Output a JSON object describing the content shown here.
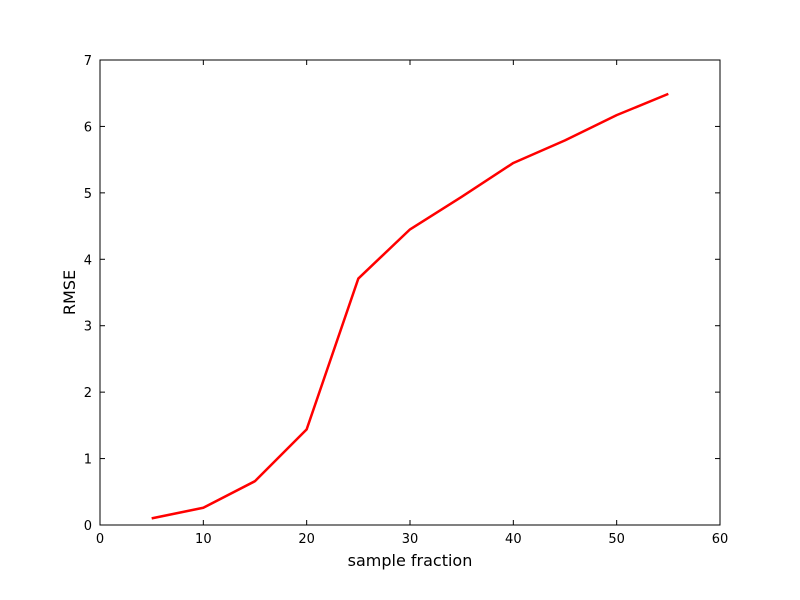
{
  "chart_data": {
    "type": "line",
    "title": "",
    "xlabel": "sample fraction",
    "ylabel": "RMSE",
    "xlim": [
      0,
      60
    ],
    "ylim": [
      0,
      7
    ],
    "xticks": [
      0,
      10,
      20,
      30,
      40,
      50,
      60
    ],
    "yticks": [
      0,
      1,
      2,
      3,
      4,
      5,
      6,
      7
    ],
    "grid": false,
    "legend": "none",
    "series": [
      {
        "color": "#ff0000",
        "x": [
          5,
          10,
          15,
          20,
          25,
          30,
          35,
          40,
          45,
          50,
          55
        ],
        "y": [
          0.1,
          0.26,
          0.66,
          1.44,
          3.71,
          4.45,
          4.94,
          5.45,
          5.79,
          6.17,
          6.49
        ]
      }
    ]
  }
}
